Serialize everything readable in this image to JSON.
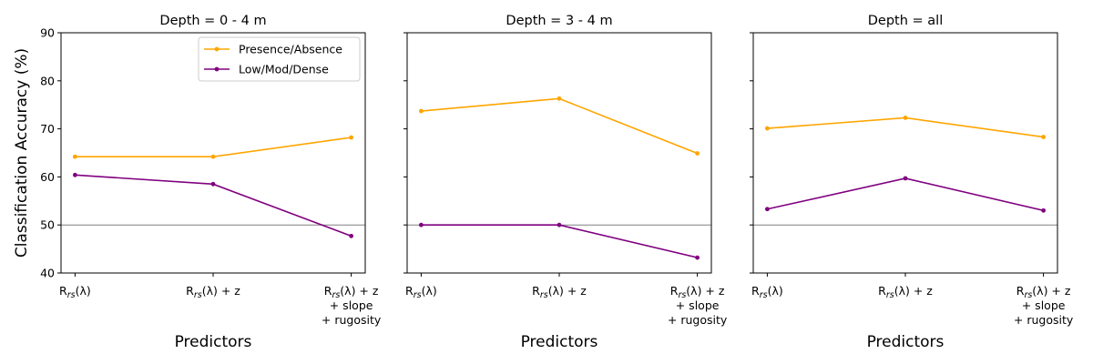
{
  "chart_data": [
    {
      "type": "line",
      "title": "Depth = 0 - 4 m",
      "xlabel": "Predictors",
      "ylabel": "Classification Accuracy (%)",
      "ylim": [
        40,
        90
      ],
      "yticks": [
        40,
        50,
        60,
        70,
        80,
        90
      ],
      "categories": [
        [
          "R",
          "rs",
          "(λ)"
        ],
        [
          "R",
          "rs",
          "(λ) + z"
        ],
        [
          "R",
          "rs",
          "(λ) + z",
          "+ slope",
          "+ rugosity"
        ]
      ],
      "reference_line": 50,
      "legend": true,
      "legend_position": "top-right",
      "series": [
        {
          "name": "Presence/Absence",
          "color": "#FFA500",
          "values": [
            64.2,
            64.2,
            68.2
          ]
        },
        {
          "name": "Low/Mod/Dense",
          "color": "#800080",
          "values": [
            60.4,
            58.5,
            47.7
          ]
        }
      ]
    },
    {
      "type": "line",
      "title": "Depth = 3 - 4 m",
      "xlabel": "Predictors",
      "ylabel": "",
      "ylim": [
        40,
        90
      ],
      "yticks": [
        40,
        50,
        60,
        70,
        80,
        90
      ],
      "categories": [
        [
          "R",
          "rs",
          "(λ)"
        ],
        [
          "R",
          "rs",
          "(λ) + z"
        ],
        [
          "R",
          "rs",
          "(λ) + z",
          "+ slope",
          "+ rugosity"
        ]
      ],
      "reference_line": 50,
      "legend": false,
      "series": [
        {
          "name": "Presence/Absence",
          "color": "#FFA500",
          "values": [
            73.7,
            76.3,
            64.9
          ]
        },
        {
          "name": "Low/Mod/Dense",
          "color": "#800080",
          "values": [
            50.0,
            50.0,
            43.2
          ]
        }
      ]
    },
    {
      "type": "line",
      "title": "Depth = all",
      "xlabel": "Predictors",
      "ylabel": "",
      "ylim": [
        40,
        90
      ],
      "yticks": [
        40,
        50,
        60,
        70,
        80,
        90
      ],
      "categories": [
        [
          "R",
          "rs",
          "(λ)"
        ],
        [
          "R",
          "rs",
          "(λ) + z"
        ],
        [
          "R",
          "rs",
          "(λ) + z",
          "+ slope",
          "+ rugosity"
        ]
      ],
      "reference_line": 50,
      "legend": false,
      "series": [
        {
          "name": "Presence/Absence",
          "color": "#FFA500",
          "values": [
            70.1,
            72.3,
            68.3
          ]
        },
        {
          "name": "Low/Mod/Dense",
          "color": "#800080",
          "values": [
            53.3,
            59.7,
            53.0
          ]
        }
      ]
    }
  ],
  "colors": {
    "reference_line": "#808080",
    "axis": "#000000"
  }
}
